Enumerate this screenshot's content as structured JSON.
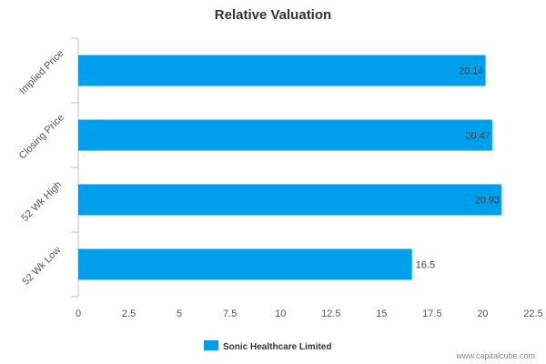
{
  "chart_data": {
    "type": "bar",
    "orientation": "horizontal",
    "title": "Relative Valuation",
    "categories": [
      "Implied Price",
      "Closing Price",
      "52 Wk High",
      "52 Wk Low"
    ],
    "series": [
      {
        "name": "Sonic Healthcare Limited",
        "values": [
          20.14,
          20.47,
          20.93,
          16.5
        ],
        "data_labels": [
          "20.14",
          "20.47",
          "20.93",
          "16.5"
        ],
        "color": "#009fee"
      }
    ],
    "xlim": [
      0,
      22.5
    ],
    "x_ticks": [
      0,
      2.5,
      5,
      7.5,
      10,
      12.5,
      15,
      17.5,
      20,
      22.5
    ],
    "x_tick_labels": [
      "0",
      "2.5",
      "5",
      "7.5",
      "10",
      "12.5",
      "15",
      "17.5",
      "20",
      "22.5"
    ],
    "grid": false,
    "legend_position": "bottom-center"
  },
  "watermark": "www.capitalcube.com",
  "colors": {
    "bar": "#009fee",
    "axis": "#c0c0c0",
    "text": "#555555"
  }
}
